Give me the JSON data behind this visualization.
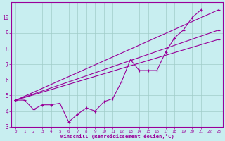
{
  "background_color": "#c8eef0",
  "grid_color": "#a0ccc8",
  "line_color": "#990099",
  "xlim": [
    -0.5,
    23.5
  ],
  "ylim": [
    3,
    11
  ],
  "xlabel": "Windchill (Refroidissement éolien,°C)",
  "yticks": [
    3,
    4,
    5,
    6,
    7,
    8,
    9,
    10
  ],
  "xticks": [
    0,
    1,
    2,
    3,
    4,
    5,
    6,
    7,
    8,
    9,
    10,
    11,
    12,
    13,
    14,
    15,
    16,
    17,
    18,
    19,
    20,
    21,
    22,
    23
  ],
  "series": [
    {
      "x": [
        0,
        1,
        2,
        3,
        4,
        5,
        6,
        7,
        8,
        9,
        10,
        11,
        12,
        13,
        14,
        15,
        16,
        17,
        18,
        19,
        20,
        21,
        22,
        23
      ],
      "y": [
        4.7,
        4.7,
        4.1,
        4.4,
        4.4,
        4.5,
        3.3,
        3.8,
        4.2,
        4.0,
        4.6,
        4.8,
        5.9,
        7.3,
        6.6,
        6.6,
        6.6,
        7.8,
        8.7,
        9.2,
        10.0,
        10.5,
        null,
        null
      ]
    },
    {
      "x": [
        0,
        23
      ],
      "y": [
        4.7,
        10.5
      ]
    },
    {
      "x": [
        0,
        23
      ],
      "y": [
        4.7,
        9.2
      ]
    },
    {
      "x": [
        0,
        23
      ],
      "y": [
        4.7,
        8.6
      ]
    }
  ]
}
